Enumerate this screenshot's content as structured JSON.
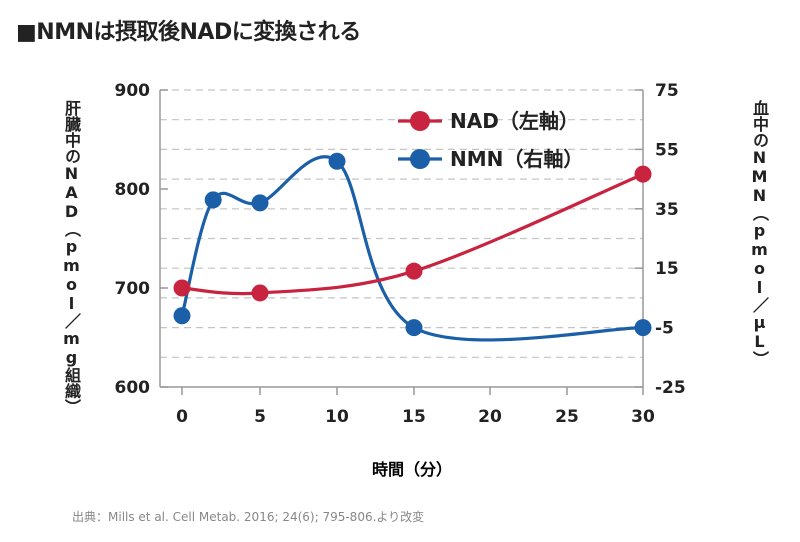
{
  "title": "■NMNは摂取後NADに変換される",
  "source": "出典：Mills et al. Cell Metab. 2016; 24(6); 795-806.より改変",
  "chart_data": {
    "type": "line",
    "x": [
      0,
      2,
      5,
      10,
      15,
      20,
      25,
      30
    ],
    "x_ticks": [
      "0",
      "5",
      "10",
      "15",
      "20",
      "25",
      "30"
    ],
    "x_tick_values": [
      0,
      5,
      10,
      15,
      20,
      25,
      30
    ],
    "xlabel": "時間（分）",
    "ylabel_left": "肝臓中のNAD（pmol／mg組織）",
    "ylabel_right": "血中のNMN（pmol／μL）",
    "ylim_left": [
      600,
      900
    ],
    "ylim_right": [
      -25,
      75
    ],
    "yticks_left": [
      600,
      700,
      800,
      900
    ],
    "yticks_right": [
      -25,
      -5,
      15,
      35,
      55,
      75
    ],
    "grid": true,
    "legend_position": "top-right",
    "series": [
      {
        "name": "NAD（左軸）",
        "axis": "left",
        "color": "#c8233f",
        "points": [
          [
            0,
            700
          ],
          [
            5,
            695
          ],
          [
            15,
            717
          ],
          [
            30,
            815
          ]
        ]
      },
      {
        "name": "NMN（右軸）",
        "axis": "right",
        "color": "#1a5fa8",
        "points": [
          [
            0,
            -1
          ],
          [
            2,
            38
          ],
          [
            5,
            37
          ],
          [
            10,
            51
          ],
          [
            15,
            -5
          ],
          [
            30,
            -5
          ]
        ]
      }
    ]
  }
}
